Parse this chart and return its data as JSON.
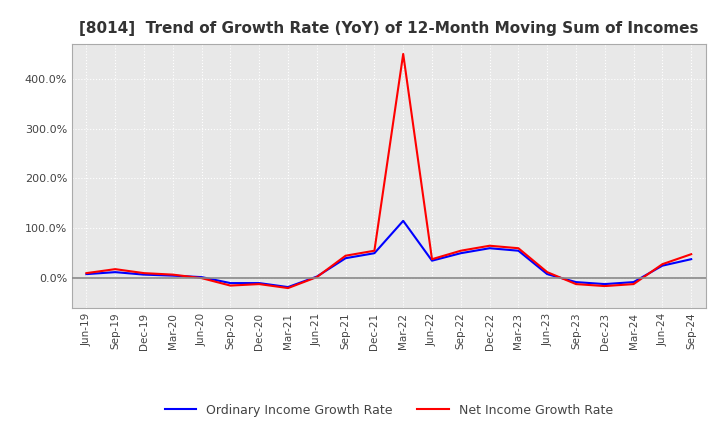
{
  "title": "[8014]  Trend of Growth Rate (YoY) of 12-Month Moving Sum of Incomes",
  "legend_labels": [
    "Ordinary Income Growth Rate",
    "Net Income Growth Rate"
  ],
  "line_colors": [
    "#0000FF",
    "#FF0000"
  ],
  "background_color": "#FFFFFF",
  "plot_bg_color": "#E8E8E8",
  "grid_color": "#FFFFFF",
  "ylim": [
    -60,
    470
  ],
  "yticks": [
    0,
    100,
    200,
    300,
    400
  ],
  "x_labels": [
    "Jun-19",
    "Sep-19",
    "Dec-19",
    "Mar-20",
    "Jun-20",
    "Sep-20",
    "Dec-20",
    "Mar-21",
    "Jun-21",
    "Sep-21",
    "Dec-21",
    "Mar-22",
    "Jun-22",
    "Sep-22",
    "Dec-22",
    "Mar-23",
    "Jun-23",
    "Sep-23",
    "Dec-23",
    "Mar-24",
    "Jun-24",
    "Sep-24"
  ],
  "ordinary_income_growth": [
    8,
    12,
    7,
    5,
    2,
    -10,
    -10,
    -18,
    3,
    40,
    50,
    115,
    35,
    50,
    60,
    55,
    8,
    -8,
    -12,
    -8,
    25,
    38
  ],
  "net_income_growth": [
    10,
    18,
    10,
    7,
    0,
    -15,
    -12,
    -20,
    2,
    45,
    55,
    450,
    38,
    55,
    65,
    60,
    12,
    -12,
    -16,
    -12,
    28,
    48
  ]
}
